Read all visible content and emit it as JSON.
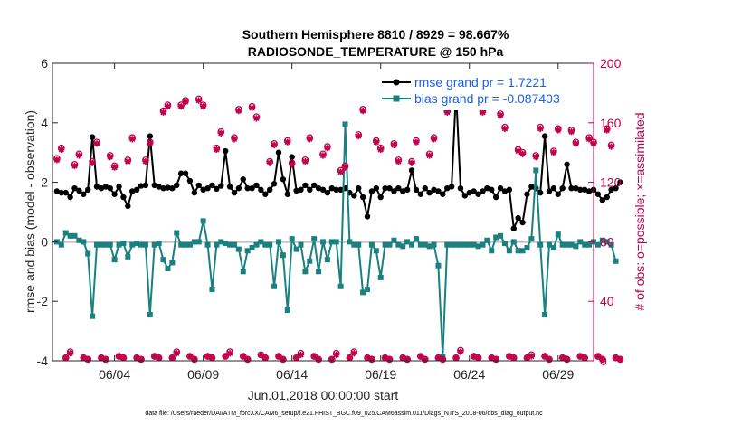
{
  "chart_data": {
    "type": "line",
    "title_line1": "Southern Hemisphere 8810 / 8929 = 98.667%",
    "title_line2": "RADIOSONDE_TEMPERATURE @ 150 hPa",
    "xlabel": "Jun.01,2018 00:00:00 start",
    "ylabel": "rmse and bias (model - observation)",
    "y2label": "# of obs: o=possible; ×=assimilated",
    "footnote": "data file: /Users/raeder/DAI/ATM_forcXX/CAM6_setup/f.e21.FHIST_BGC.f09_025.CAM6assim.011/Diags_NTrS_2018-06/obs_diag_output.nc",
    "xlim": [
      0.5,
      31
    ],
    "ylim": [
      -4,
      6
    ],
    "y2lim": [
      0,
      200
    ],
    "x_ticks": [
      4,
      9,
      14,
      19,
      24,
      29
    ],
    "x_tick_labels": [
      "06/04",
      "06/09",
      "06/14",
      "06/19",
      "06/24",
      "06/29"
    ],
    "y_ticks": [
      -4,
      -2,
      0,
      2,
      4,
      6
    ],
    "y_tick_labels": [
      "-4",
      "-2",
      "0",
      "2",
      "4",
      "6"
    ],
    "y2_ticks": [
      0,
      40,
      80,
      120,
      160,
      200
    ],
    "y2_tick_labels": [
      "0",
      "40",
      "80",
      "120",
      "160",
      "200"
    ],
    "zero_line": 0,
    "legend": [
      {
        "name": "rmse grand pr = 1.7221",
        "color": "#000000"
      },
      {
        "name": "bias grand pr = -0.087403",
        "color": "#1a8080"
      }
    ],
    "x_step_days": 0.25,
    "x_start": 0.75,
    "series": [
      {
        "name": "rmse",
        "axis": "left",
        "color": "#000000",
        "values": [
          1.7,
          1.65,
          1.65,
          1.5,
          1.8,
          1.72,
          1.6,
          1.75,
          3.52,
          1.85,
          1.8,
          1.85,
          1.8,
          1.6,
          1.85,
          1.5,
          1.2,
          1.7,
          1.75,
          1.88,
          1.9,
          3.55,
          1.9,
          1.85,
          1.8,
          1.82,
          1.8,
          1.9,
          2.3,
          2.3,
          2.05,
          1.65,
          1.9,
          1.75,
          1.8,
          1.9,
          1.78,
          1.88,
          3.05,
          1.85,
          1.65,
          1.8,
          2.1,
          1.8,
          1.8,
          1.9,
          1.75,
          1.6,
          1.75,
          1.95,
          3.0,
          2.1,
          1.6,
          2.85,
          1.72,
          1.75,
          1.9,
          1.75,
          1.9,
          1.8,
          1.75,
          1.65,
          1.8,
          1.75,
          1.75,
          1.8,
          1.65,
          1.55,
          1.8,
          1.5,
          0.85,
          1.7,
          1.8,
          1.5,
          1.8,
          1.8,
          1.7,
          1.8,
          1.7,
          1.75,
          2.4,
          1.75,
          1.6,
          1.8,
          1.65,
          1.75,
          1.7,
          1.6,
          1.8,
          1.85,
          5.05,
          1.8,
          1.55,
          1.65,
          1.7,
          1.6,
          1.7,
          1.8,
          1.75,
          1.5,
          1.8,
          1.7,
          1.75,
          0.45,
          0.8,
          0.65,
          1.6,
          1.85,
          1.8,
          1.65,
          3.55,
          1.7,
          1.8,
          1.6,
          1.8,
          2.6,
          1.8,
          1.8,
          1.75,
          1.75,
          1.7,
          1.75,
          1.6,
          1.4,
          1.5,
          1.75,
          1.8,
          2.0
        ]
      },
      {
        "name": "bias",
        "axis": "left",
        "color": "#1a8080",
        "values": [
          0.0,
          -0.1,
          0.3,
          0.2,
          0.2,
          0.05,
          0.0,
          -0.4,
          -2.5,
          -0.1,
          -0.1,
          -0.1,
          -0.1,
          -0.6,
          -0.1,
          -0.05,
          -0.5,
          -0.1,
          -0.05,
          -0.1,
          -0.1,
          -2.45,
          -0.1,
          -0.05,
          -0.6,
          -0.9,
          -0.7,
          0.3,
          -0.1,
          -0.1,
          -0.1,
          0.0,
          0.0,
          0.7,
          -0.1,
          -1.6,
          -0.1,
          0.0,
          -0.05,
          -0.1,
          -0.1,
          -0.25,
          -1.0,
          -0.3,
          -0.2,
          -0.1,
          0.0,
          -0.1,
          -0.1,
          -1.5,
          0.0,
          -0.45,
          -2.3,
          0.1,
          -0.25,
          -0.1,
          -1.0,
          -0.65,
          0.1,
          -1.0,
          0.0,
          -0.6,
          0.0,
          0.0,
          -1.5,
          3.95,
          0.0,
          -0.1,
          -0.1,
          -1.7,
          -1.6,
          -0.1,
          -0.3,
          -1.2,
          -0.1,
          -0.1,
          0.05,
          -0.1,
          -0.15,
          0.0,
          -0.1,
          0.1,
          -0.1,
          -0.1,
          -0.15,
          -0.1,
          -0.8,
          -3.85,
          -0.1,
          -0.1,
          -0.1,
          -0.1,
          -0.1,
          -0.1,
          -0.1,
          -0.15,
          -0.1,
          0.05,
          -0.3,
          0.15,
          0.2,
          -0.05,
          -0.3,
          0.0,
          -0.3,
          -0.3,
          -0.2,
          0.1,
          2.4,
          -0.1,
          -2.45,
          -0.1,
          -0.2,
          0.25,
          -0.1,
          -0.1,
          -0.1,
          -0.15,
          0.0,
          -0.1,
          -0.1,
          0.0,
          -0.1,
          0.05,
          0.0,
          -0.1,
          -0.65
        ]
      },
      {
        "name": "obs_possible",
        "axis": "right",
        "color": "#c0004a",
        "marker": "o",
        "values": [
          136,
          143,
          2,
          6,
          132,
          139,
          2,
          1,
          134,
          147,
          2,
          1,
          138,
          131,
          3,
          2,
          135,
          150,
          2,
          1,
          135,
          147,
          3,
          2,
          168,
          172,
          2,
          6,
          172,
          175,
          3,
          1,
          176,
          172,
          3,
          2,
          143,
          154,
          3,
          6,
          150,
          169,
          3,
          1,
          171,
          164,
          4,
          2,
          134,
          146,
          3,
          1,
          148,
          133,
          2,
          5,
          135,
          150,
          3,
          1,
          139,
          144,
          1,
          5,
          128,
          131,
          2,
          6,
          152,
          169,
          2,
          1,
          148,
          143,
          2,
          1,
          146,
          135,
          2,
          1,
          134,
          148,
          3,
          1,
          139,
          150,
          2,
          1,
          168,
          173,
          2,
          7,
          173,
          180,
          3,
          2,
          168,
          176,
          2,
          1,
          166,
          157,
          3,
          2,
          142,
          140,
          2,
          4,
          138,
          157,
          3,
          1,
          141,
          156,
          2,
          1,
          155,
          147,
          3,
          2,
          150,
          147,
          3,
          1,
          156,
          145,
          2,
          1
        ]
      },
      {
        "name": "obs_assimilated",
        "axis": "right",
        "color": "#c0004a",
        "marker": "x",
        "values": [
          135,
          142,
          2,
          5,
          131,
          138,
          2,
          1,
          133,
          146,
          2,
          1,
          137,
          130,
          3,
          2,
          134,
          149,
          2,
          1,
          134,
          146,
          3,
          2,
          167,
          171,
          2,
          5,
          171,
          174,
          3,
          1,
          175,
          171,
          3,
          2,
          142,
          153,
          3,
          5,
          149,
          168,
          3,
          1,
          170,
          163,
          4,
          2,
          133,
          145,
          3,
          1,
          147,
          132,
          2,
          4,
          134,
          149,
          3,
          1,
          138,
          143,
          1,
          4,
          127,
          130,
          2,
          5,
          151,
          168,
          2,
          1,
          147,
          142,
          2,
          1,
          145,
          134,
          2,
          1,
          133,
          147,
          3,
          1,
          138,
          149,
          2,
          1,
          167,
          172,
          2,
          6,
          172,
          179,
          3,
          2,
          167,
          175,
          2,
          1,
          165,
          156,
          3,
          2,
          141,
          139,
          2,
          3,
          137,
          156,
          3,
          1,
          140,
          155,
          2,
          1,
          154,
          146,
          3,
          2,
          149,
          146,
          3,
          1,
          155,
          144,
          2,
          1
        ]
      }
    ]
  }
}
